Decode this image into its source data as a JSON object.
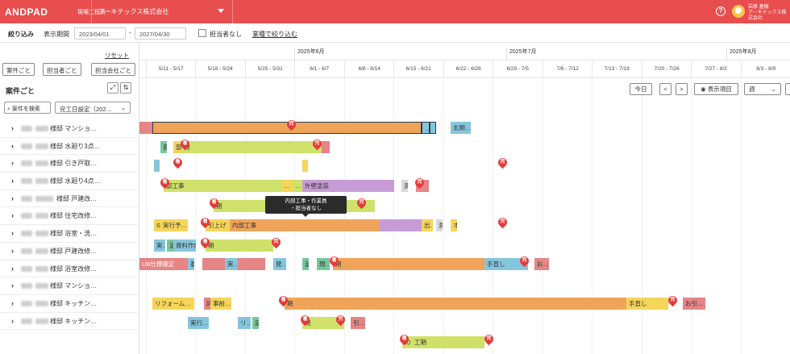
{
  "header": {
    "logo": "ANDPAD",
    "product": "現場工程表",
    "company": "アーキテックス株式会社",
    "help": "?",
    "user_name": "岩原 基樹",
    "user_company": "アーキテックス株式会社"
  },
  "filters": {
    "label": "絞り込み",
    "period_label": "表示期間",
    "date_from": "2023/04/01",
    "dash": "-",
    "date_to": "2027/04/30",
    "no_assignee": "担当者なし",
    "trade_filter": "業種で絞り込む"
  },
  "left": {
    "reset": "リセット",
    "group_buttons": [
      "案件ごと",
      "担当者ごと",
      "担当会社ごと"
    ],
    "section_title": "案件ごと",
    "expand_icon": "⤢",
    "sort_icon": "⇅",
    "search": "案件を検索",
    "sort_value": "完工日設定（202…",
    "rows": [
      {
        "name": "様邸 マンショ…"
      },
      {
        "name": "様邸 水廻り3点…"
      },
      {
        "name": "様邸 引き戸取…"
      },
      {
        "name": "様邸 水廻り4点…"
      },
      {
        "name": "様邸 戸建改…"
      },
      {
        "name": "様邸 住宅改修…"
      },
      {
        "name": "様邸 浴室・洗…"
      },
      {
        "name": "様邸 戸建改修…"
      },
      {
        "name": "様邸 浴室改修…"
      },
      {
        "name": "様邸 マンショ…"
      },
      {
        "name": "様邸 キッチン…"
      },
      {
        "name": "様邸 キッチン…"
      }
    ]
  },
  "gantt": {
    "months": [
      "2025年6月",
      "2025年7月",
      "2025年8月"
    ],
    "weeks": [
      "5/11 - 5/17",
      "5/18 - 5/24",
      "5/25 - 5/31",
      "6/1 - 6/7",
      "6/8 - 6/14",
      "6/15 - 6/21",
      "6/22 - 6/28",
      "6/29 - 7/5",
      "7/6 - 7/12",
      "7/13 - 7/19",
      "7/20 - 7/26",
      "7/27 - 8/2",
      "8/3 - 8/9"
    ],
    "toolbar": {
      "today": "今日",
      "prev": "<",
      "next": ">",
      "display_items": "表示項目",
      "unit": "週"
    },
    "tooltip": {
      "line1": "内部工事・作業員",
      "line2": "・担当者なし"
    },
    "bars": {
      "b1": "",
      "b2": "…",
      "b3": "",
      "b4": "玄関…",
      "r2a": "瓷",
      "r2b": "部",
      "r2c": "期",
      "r4a": "部工事",
      "r4b": "…",
      "r4c": "…し",
      "r4d": "外壁塗装",
      "r4e": "測",
      "r5a": "期",
      "r6a": "S",
      "r6b": "実行予…",
      "r6c": "引上げ",
      "r6d": "内部工事",
      "r6e": "出…",
      "r6f": "測",
      "r6g": "オ",
      "r7a": "実…",
      "r7b": "足",
      "r7c": "資料作成",
      "r7d": "期",
      "r8a": "UB仕様確定",
      "r8b": "基",
      "r8c": "実…",
      "r8d": "発…",
      "r8e": "足",
      "r8f": "現…",
      "r8g": "期",
      "r8h": "手直し",
      "r8i": "お…",
      "r10a": "リフォーム…",
      "r10b": "詳",
      "r10c": "事前…",
      "r10d": "期",
      "r10e": "手直し",
      "r10f": "お引…",
      "r11a": "実行…",
      "r11b": "リ…",
      "r11c": "足",
      "r11d": "期",
      "r11e": "引…",
      "r12a": "の",
      "r12b": "工期"
    },
    "pin_start": "着",
    "pin_end": "完"
  }
}
